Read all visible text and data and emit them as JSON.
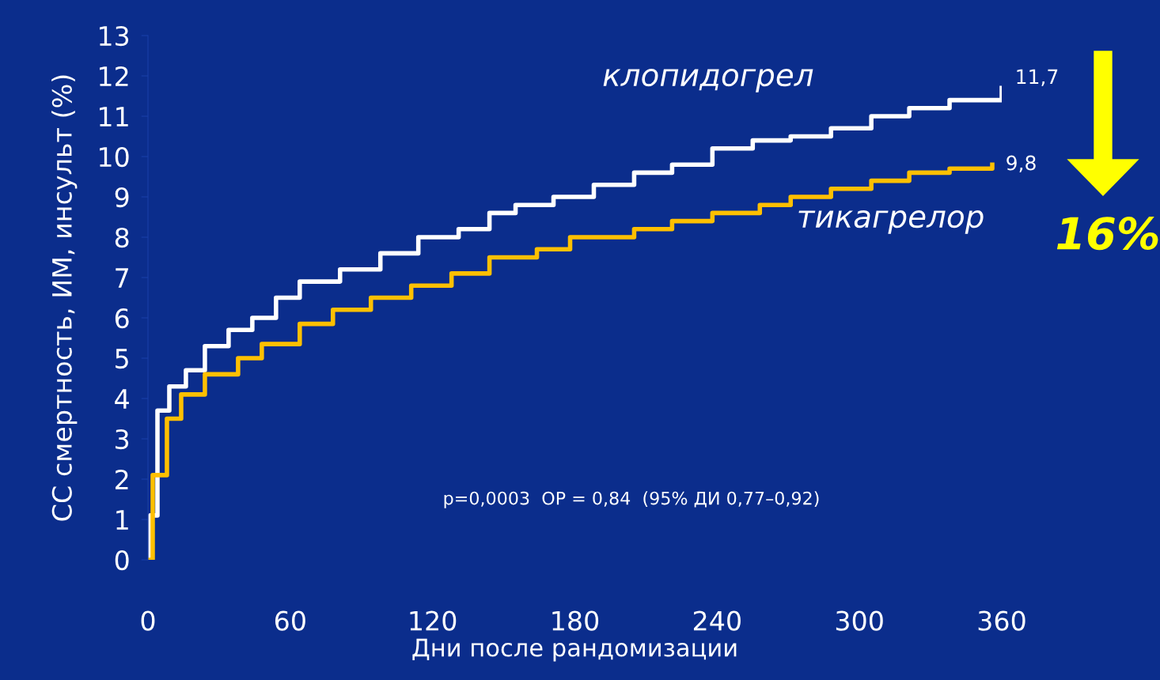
{
  "chart_data": {
    "type": "step",
    "xlabel": "Дни после рандомизации",
    "ylabel": "СС смертность, ИМ, инсульт (%)",
    "xlim": [
      0,
      360
    ],
    "xticks": [
      0,
      60,
      120,
      180,
      240,
      300,
      360
    ],
    "ylim": [
      0,
      13
    ],
    "yticks": [
      0,
      1,
      2,
      3,
      4,
      5,
      6,
      7,
      8,
      9,
      10,
      11,
      12,
      13
    ],
    "grid": false,
    "legend": false,
    "series": [
      {
        "name": "клопидогрел",
        "color": "#ffffff",
        "x": [
          0,
          1,
          4,
          9,
          16,
          24,
          34,
          44,
          54,
          64,
          81,
          98,
          114,
          131,
          144,
          155,
          171,
          188,
          205,
          221,
          238,
          255,
          271,
          288,
          305,
          321,
          338,
          360
        ],
        "values": [
          0,
          1.1,
          3.7,
          4.3,
          4.7,
          5.3,
          5.7,
          6.0,
          6.5,
          6.9,
          7.2,
          7.6,
          8.0,
          8.2,
          8.6,
          8.8,
          9.0,
          9.3,
          9.6,
          9.8,
          10.2,
          10.4,
          10.5,
          10.7,
          11.0,
          11.2,
          11.4,
          11.7
        ]
      },
      {
        "name": "тикагрелор",
        "color": "#ffc000",
        "x": [
          0,
          2,
          8,
          14,
          24,
          38,
          48,
          64,
          78,
          94,
          111,
          128,
          144,
          164,
          178,
          205,
          221,
          238,
          258,
          271,
          288,
          305,
          321,
          338,
          356
        ],
        "values": [
          0,
          2.1,
          3.5,
          4.1,
          4.6,
          5.0,
          5.35,
          5.85,
          6.2,
          6.5,
          6.8,
          7.1,
          7.5,
          7.7,
          8.0,
          8.2,
          8.4,
          8.6,
          8.8,
          9.0,
          9.2,
          9.4,
          9.6,
          9.7,
          9.8
        ]
      }
    ],
    "annotations": [
      {
        "text": "11,7",
        "x": 360,
        "y": 11.7
      },
      {
        "text": "9,8",
        "x": 356,
        "y": 9.8
      },
      "16%",
      "p=0,0003  ОР = 0,84  (95% ДИ 0,77–0,92)"
    ]
  }
}
